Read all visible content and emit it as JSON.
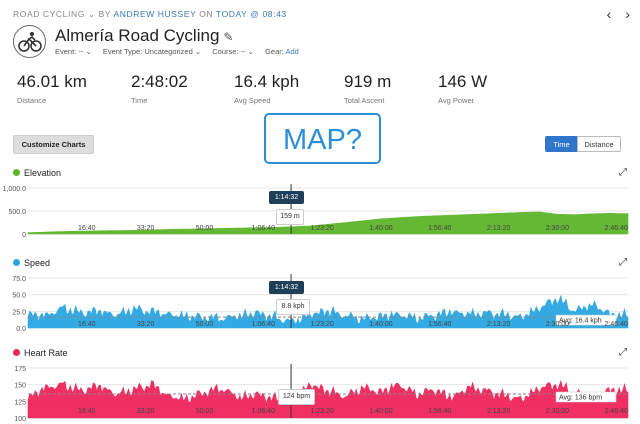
{
  "breadcrumb": {
    "activity_type": "ROAD CYCLING",
    "by_text": "BY",
    "author": "ANDREW HUSSEY",
    "on_text": "ON",
    "when": "TODAY @ 08:43"
  },
  "header": {
    "title": "Almería Road Cycling",
    "event": "Event: --",
    "event_type": "Event Type: Uncategorized",
    "course": "Course: --",
    "gear_label": "Gear:",
    "gear_add": "Add"
  },
  "stats": [
    {
      "value": "46.01 km",
      "label": "Distance"
    },
    {
      "value": "2:48:02",
      "label": "Time"
    },
    {
      "value": "16.4 kph",
      "label": "Avg Speed"
    },
    {
      "value": "919 m",
      "label": "Total Ascent"
    },
    {
      "value": "146 W",
      "label": "Avg Power"
    }
  ],
  "toolbar": {
    "customize_label": "Customize Charts",
    "map_placeholder": "MAP?",
    "time_label": "Time",
    "distance_label": "Distance"
  },
  "colors": {
    "elevation": "#5db52a",
    "speed": "#29a6e3",
    "heart_rate": "#f0245a"
  },
  "cursor": {
    "time": "1:14:32"
  },
  "x_ticks": [
    "16:40",
    "33:20",
    "50:00",
    "1:06:40",
    "1:23:20",
    "1:40:00",
    "1:56:40",
    "2:13:20",
    "2:30:00",
    "2:46:40"
  ],
  "chart_data": [
    {
      "type": "area",
      "title": "Elevation",
      "y_ticks": [
        "1,000.0",
        "500.0",
        "0"
      ],
      "ylim": [
        0,
        1000
      ],
      "x_ticks": [
        "16:40",
        "33:20",
        "50:00",
        "1:06:40",
        "1:23:20",
        "1:40:00",
        "1:56:40",
        "2:13:20",
        "2:30:00",
        "2:46:40"
      ],
      "cursor_value": "159 m",
      "x_minutes": [
        0,
        10,
        20,
        30,
        40,
        50,
        60,
        70,
        75,
        80,
        90,
        100,
        110,
        120,
        130,
        140,
        145,
        150,
        155,
        160,
        165,
        168
      ],
      "values": [
        30,
        55,
        70,
        80,
        100,
        115,
        130,
        145,
        159,
        175,
        250,
        330,
        380,
        410,
        440,
        470,
        480,
        430,
        420,
        440,
        450,
        445
      ]
    },
    {
      "type": "area",
      "title": "Speed",
      "y_ticks": [
        "75.0",
        "50.0",
        "25.0",
        "0.0"
      ],
      "ylim": [
        0,
        75
      ],
      "x_ticks": [
        "16:40",
        "33:20",
        "50:00",
        "1:06:40",
        "1:23:20",
        "1:40:00",
        "1:56:40",
        "2:13:20",
        "2:30:00",
        "2:46:40"
      ],
      "cursor_value": "8.8 kph",
      "avg_label": "Avg: 16.4 kph",
      "avg_value": 16.4,
      "x_minutes": [
        0,
        5,
        10,
        15,
        20,
        25,
        30,
        35,
        40,
        45,
        50,
        55,
        60,
        65,
        70,
        75,
        80,
        85,
        90,
        95,
        100,
        105,
        110,
        115,
        120,
        125,
        130,
        135,
        140,
        145,
        150,
        155,
        160,
        165,
        168
      ],
      "values": [
        20,
        18,
        30,
        22,
        25,
        19,
        28,
        24,
        20,
        17,
        15,
        14,
        18,
        22,
        15,
        9,
        20,
        25,
        18,
        13,
        17,
        20,
        14,
        18,
        24,
        20,
        22,
        19,
        16,
        30,
        44,
        25,
        35,
        20,
        18
      ]
    },
    {
      "type": "area",
      "title": "Heart Rate",
      "y_ticks": [
        "175",
        "150",
        "125",
        "100"
      ],
      "ylim": [
        100,
        175
      ],
      "x_ticks": [
        "16:40",
        "33:20",
        "50:00",
        "1:06:40",
        "1:23:20",
        "1:40:00",
        "1:56:40",
        "2:13:20",
        "2:30:00",
        "2:46:40"
      ],
      "cursor_value": "124 bpm",
      "avg_label": "Avg: 136 bpm",
      "avg_value": 136,
      "x_minutes": [
        0,
        5,
        10,
        15,
        20,
        25,
        30,
        35,
        40,
        45,
        50,
        55,
        60,
        65,
        70,
        75,
        80,
        85,
        90,
        95,
        100,
        105,
        110,
        115,
        120,
        125,
        130,
        135,
        140,
        145,
        150,
        155,
        160,
        165,
        168
      ],
      "values": [
        130,
        145,
        150,
        140,
        148,
        135,
        142,
        150,
        132,
        128,
        138,
        144,
        130,
        135,
        128,
        124,
        150,
        140,
        132,
        145,
        138,
        150,
        135,
        142,
        130,
        146,
        140,
        133,
        128,
        145,
        150,
        138,
        130,
        142,
        140
      ]
    }
  ]
}
